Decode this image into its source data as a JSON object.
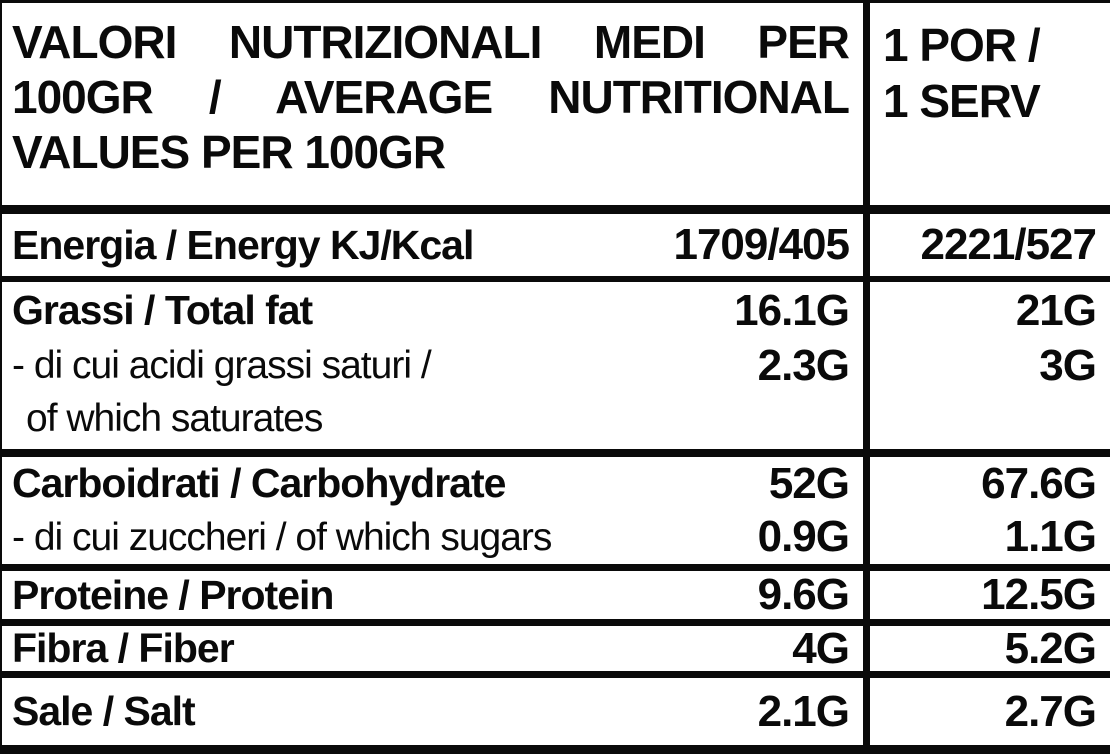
{
  "table": {
    "colors": {
      "ink": "#0a0a0a",
      "background": "#ffffff"
    },
    "header": {
      "left_title_full": "VALORI NUTRIZIONALI MEDI PER 100GR / AVERAGE NUTRITIONAL VALUES PER 100GR",
      "left_line1": "VALORI NUTRIZIONALI MEDI PER",
      "left_line2": "100GR / AVERAGE NUTRITIONAL",
      "left_line3": "VALUES PER 100GR",
      "right_line1": "1 POR /",
      "right_line2": "1 SERV"
    },
    "rows": {
      "energy": {
        "label": "Energia / Energy KJ/Kcal",
        "per_100g": "1709/405",
        "per_serving": "2221/527"
      },
      "fat": {
        "label": "Grassi / Total fat",
        "per_100g": "16.1G",
        "per_serving": "21G"
      },
      "saturates": {
        "label_line1": "- di cui acidi grassi saturi /",
        "label_line2": "of which saturates",
        "per_100g": "2.3G",
        "per_serving": "3G"
      },
      "carbs": {
        "label": "Carboidrati / Carbohydrate",
        "per_100g": "52G",
        "per_serving": "67.6G"
      },
      "sugars": {
        "label": "- di cui zuccheri / of which sugars",
        "per_100g": "0.9G",
        "per_serving": "1.1G"
      },
      "protein": {
        "label": "Proteine / Protein",
        "per_100g": "9.6G",
        "per_serving": "12.5G"
      },
      "fiber": {
        "label": "Fibra / Fiber",
        "per_100g": "4G",
        "per_serving": "5.2G"
      },
      "salt": {
        "label": "Sale / Salt",
        "per_100g": "2.1G",
        "per_serving": "2.7G"
      }
    }
  }
}
